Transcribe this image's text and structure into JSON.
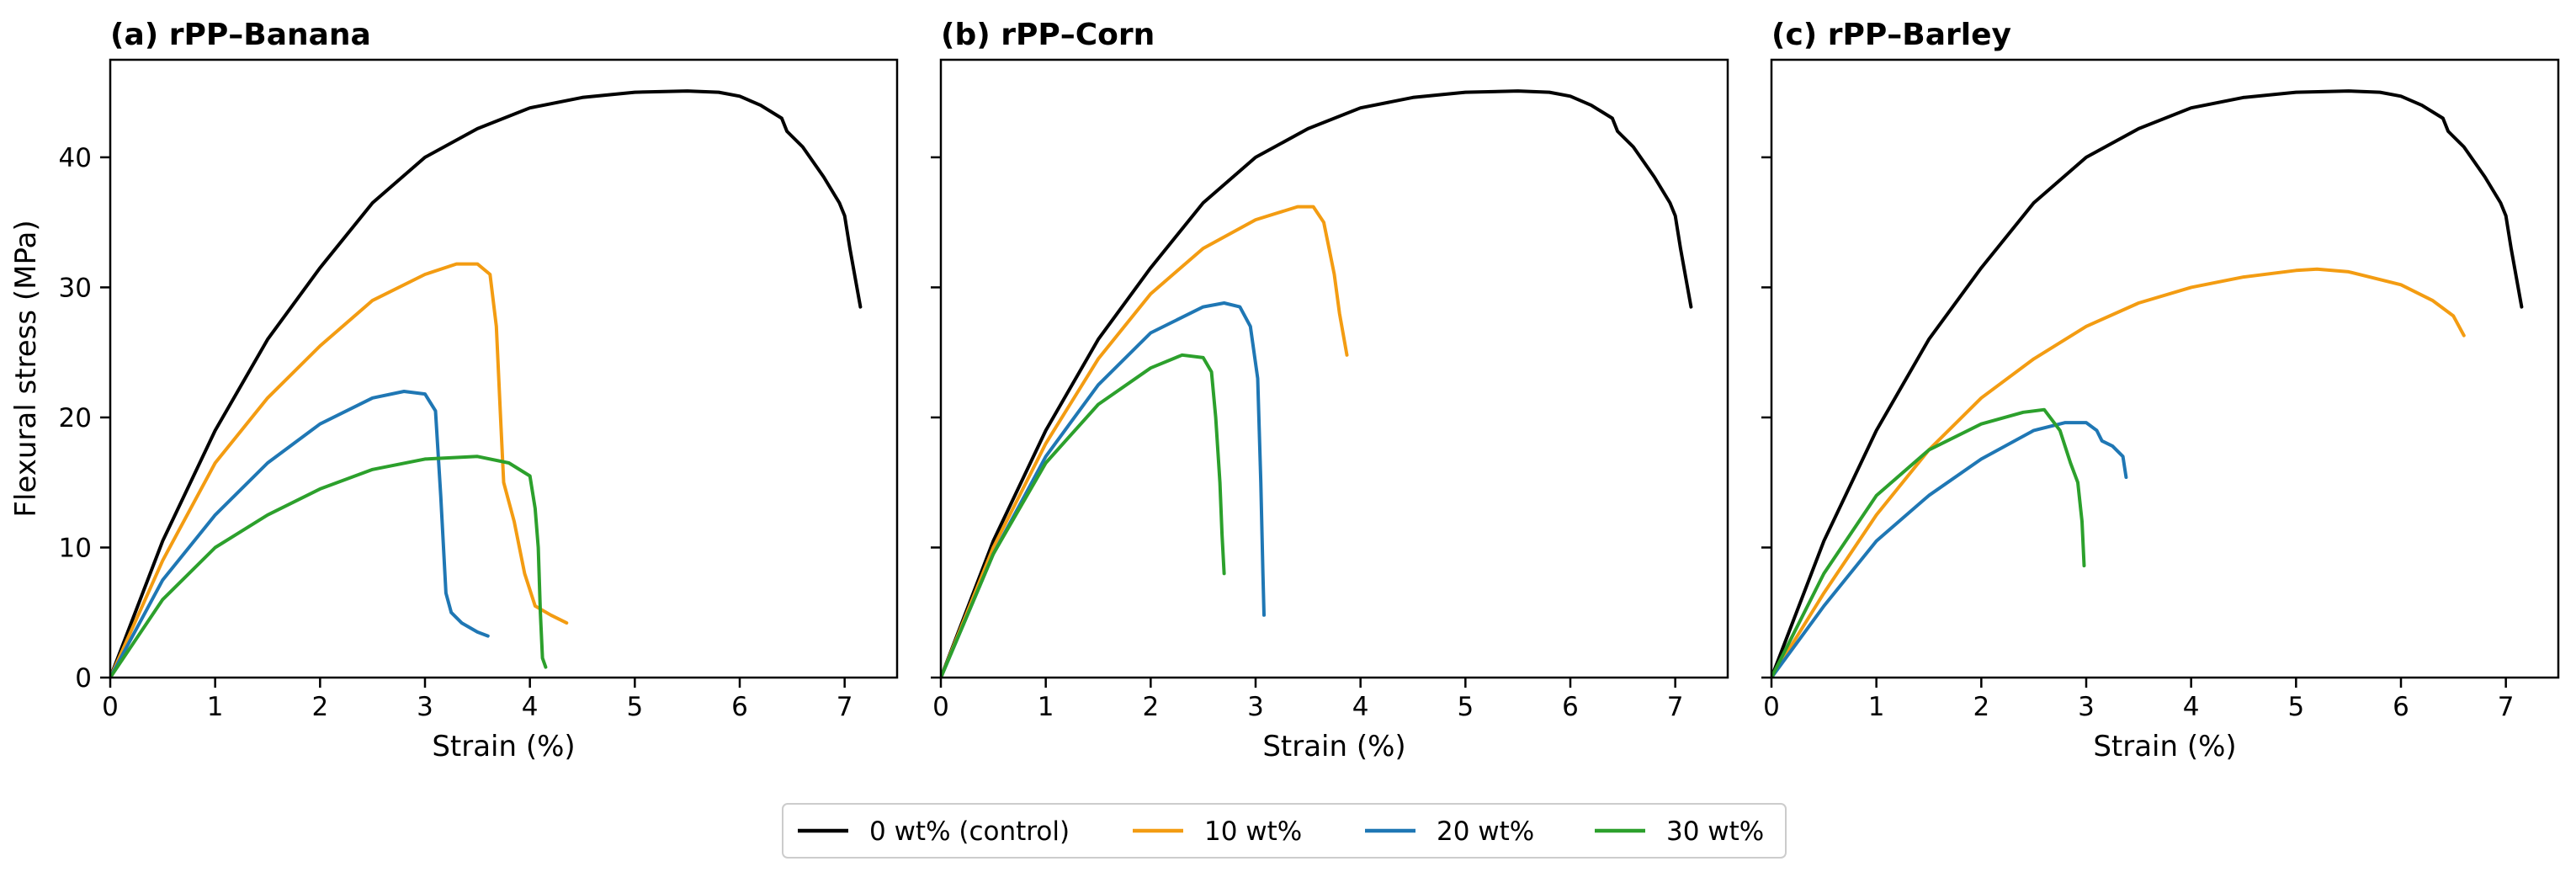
{
  "colors": {
    "control": "#000000",
    "w10": "#f39c12",
    "w20": "#1f77b4",
    "w30": "#2ca02c"
  },
  "legend": {
    "placement": "bottom-center",
    "entries": [
      {
        "label": "0 wt% (control)",
        "color": "#000000"
      },
      {
        "label": "10 wt%",
        "color": "#f39c12"
      },
      {
        "label": "20 wt%",
        "color": "#1f77b4"
      },
      {
        "label": "30 wt%",
        "color": "#2ca02c"
      }
    ]
  },
  "chart_data": [
    {
      "type": "line",
      "title": "(a) rPP–Banana",
      "xlabel": "Strain (%)",
      "ylabel": "Flexural stress (MPa)",
      "xlim": [
        0,
        7.5
      ],
      "ylim": [
        0,
        47.5
      ],
      "xticks": [
        0,
        1,
        2,
        3,
        4,
        5,
        6,
        7
      ],
      "yticks": [
        0,
        10,
        20,
        30,
        40
      ],
      "grid": false,
      "series": [
        {
          "name": "0 wt% (control)",
          "color": "#000000",
          "x": [
            0,
            0.5,
            1.0,
            1.5,
            2.0,
            2.5,
            3.0,
            3.5,
            4.0,
            4.5,
            5.0,
            5.5,
            5.8,
            6.0,
            6.2,
            6.4,
            6.45,
            6.6,
            6.8,
            6.95,
            7.0,
            7.05,
            7.15
          ],
          "y": [
            0,
            10.5,
            19.0,
            26.0,
            31.5,
            36.5,
            40.0,
            42.2,
            43.8,
            44.6,
            45.0,
            45.1,
            45.0,
            44.7,
            44.0,
            43.0,
            42.0,
            40.8,
            38.5,
            36.5,
            35.5,
            33.0,
            28.5
          ]
        },
        {
          "name": "10 wt%",
          "color": "#f39c12",
          "x": [
            0,
            0.5,
            1.0,
            1.5,
            2.0,
            2.5,
            3.0,
            3.3,
            3.5,
            3.62,
            3.68,
            3.72,
            3.75,
            3.85,
            3.95,
            4.05,
            4.2,
            4.35
          ],
          "y": [
            0,
            9.0,
            16.5,
            21.5,
            25.5,
            29.0,
            31.0,
            31.8,
            31.8,
            31.0,
            27.0,
            20.0,
            15.0,
            12.0,
            8.0,
            5.5,
            4.8,
            4.2
          ]
        },
        {
          "name": "20 wt%",
          "color": "#1f77b4",
          "x": [
            0,
            0.5,
            1.0,
            1.5,
            2.0,
            2.5,
            2.8,
            3.0,
            3.1,
            3.15,
            3.2,
            3.25,
            3.35,
            3.5,
            3.6
          ],
          "y": [
            0,
            7.5,
            12.5,
            16.5,
            19.5,
            21.5,
            22.0,
            21.8,
            20.5,
            14.0,
            6.5,
            5.0,
            4.2,
            3.5,
            3.2
          ]
        },
        {
          "name": "30 wt%",
          "color": "#2ca02c",
          "x": [
            0,
            0.5,
            1.0,
            1.5,
            2.0,
            2.5,
            3.0,
            3.5,
            3.8,
            4.0,
            4.05,
            4.08,
            4.1,
            4.12,
            4.15
          ],
          "y": [
            0,
            6.0,
            10.0,
            12.5,
            14.5,
            16.0,
            16.8,
            17.0,
            16.5,
            15.5,
            13.0,
            10.0,
            5.0,
            1.5,
            0.8
          ]
        }
      ]
    },
    {
      "type": "line",
      "title": "(b) rPP–Corn",
      "xlabel": "Strain (%)",
      "ylabel": "",
      "xlim": [
        0,
        7.5
      ],
      "ylim": [
        0,
        47.5
      ],
      "xticks": [
        0,
        1,
        2,
        3,
        4,
        5,
        6,
        7
      ],
      "yticks": [
        0,
        10,
        20,
        30,
        40
      ],
      "grid": false,
      "series": [
        {
          "name": "0 wt% (control)",
          "color": "#000000",
          "x": [
            0,
            0.5,
            1.0,
            1.5,
            2.0,
            2.5,
            3.0,
            3.5,
            4.0,
            4.5,
            5.0,
            5.5,
            5.8,
            6.0,
            6.2,
            6.4,
            6.45,
            6.6,
            6.8,
            6.95,
            7.0,
            7.05,
            7.15
          ],
          "y": [
            0,
            10.5,
            19.0,
            26.0,
            31.5,
            36.5,
            40.0,
            42.2,
            43.8,
            44.6,
            45.0,
            45.1,
            45.0,
            44.7,
            44.0,
            43.0,
            42.0,
            40.8,
            38.5,
            36.5,
            35.5,
            33.0,
            28.5
          ]
        },
        {
          "name": "10 wt%",
          "color": "#f39c12",
          "x": [
            0,
            0.5,
            1.0,
            1.5,
            2.0,
            2.5,
            3.0,
            3.4,
            3.55,
            3.65,
            3.7,
            3.75,
            3.8,
            3.87
          ],
          "y": [
            0,
            10.0,
            18.0,
            24.5,
            29.5,
            33.0,
            35.2,
            36.2,
            36.2,
            35.0,
            33.0,
            31.0,
            28.0,
            24.8
          ]
        },
        {
          "name": "20 wt%",
          "color": "#1f77b4",
          "x": [
            0,
            0.5,
            1.0,
            1.5,
            2.0,
            2.5,
            2.7,
            2.85,
            2.95,
            3.02,
            3.05,
            3.07,
            3.08
          ],
          "y": [
            0,
            9.5,
            17.0,
            22.5,
            26.5,
            28.5,
            28.8,
            28.5,
            27.0,
            23.0,
            15.0,
            8.0,
            4.8
          ]
        },
        {
          "name": "30 wt%",
          "color": "#2ca02c",
          "x": [
            0,
            0.5,
            1.0,
            1.5,
            2.0,
            2.3,
            2.5,
            2.58,
            2.62,
            2.66,
            2.68,
            2.7
          ],
          "y": [
            0,
            9.5,
            16.5,
            21.0,
            23.8,
            24.8,
            24.6,
            23.5,
            20.0,
            15.0,
            11.0,
            8.0
          ]
        }
      ]
    },
    {
      "type": "line",
      "title": "(c) rPP–Barley",
      "xlabel": "Strain (%)",
      "ylabel": "",
      "xlim": [
        0,
        7.5
      ],
      "ylim": [
        0,
        47.5
      ],
      "xticks": [
        0,
        1,
        2,
        3,
        4,
        5,
        6,
        7
      ],
      "yticks": [
        0,
        10,
        20,
        30,
        40
      ],
      "grid": false,
      "series": [
        {
          "name": "0 wt% (control)",
          "color": "#000000",
          "x": [
            0,
            0.5,
            1.0,
            1.5,
            2.0,
            2.5,
            3.0,
            3.5,
            4.0,
            4.5,
            5.0,
            5.5,
            5.8,
            6.0,
            6.2,
            6.4,
            6.45,
            6.6,
            6.8,
            6.95,
            7.0,
            7.05,
            7.15
          ],
          "y": [
            0,
            10.5,
            19.0,
            26.0,
            31.5,
            36.5,
            40.0,
            42.2,
            43.8,
            44.6,
            45.0,
            45.1,
            45.0,
            44.7,
            44.0,
            43.0,
            42.0,
            40.8,
            38.5,
            36.5,
            35.5,
            33.0,
            28.5
          ]
        },
        {
          "name": "10 wt%",
          "color": "#f39c12",
          "x": [
            0,
            0.5,
            1.0,
            1.5,
            2.0,
            2.5,
            3.0,
            3.5,
            4.0,
            4.5,
            5.0,
            5.2,
            5.5,
            6.0,
            6.3,
            6.5,
            6.6
          ],
          "y": [
            0,
            6.5,
            12.5,
            17.5,
            21.5,
            24.5,
            27.0,
            28.8,
            30.0,
            30.8,
            31.3,
            31.4,
            31.2,
            30.2,
            29.0,
            27.8,
            26.3
          ]
        },
        {
          "name": "20 wt%",
          "color": "#1f77b4",
          "x": [
            0,
            0.5,
            1.0,
            1.5,
            2.0,
            2.5,
            2.8,
            3.0,
            3.1,
            3.15,
            3.25,
            3.35,
            3.38
          ],
          "y": [
            0,
            5.5,
            10.5,
            14.0,
            16.8,
            19.0,
            19.6,
            19.6,
            19.0,
            18.2,
            17.8,
            17.0,
            15.4
          ]
        },
        {
          "name": "30 wt%",
          "color": "#2ca02c",
          "x": [
            0,
            0.5,
            1.0,
            1.5,
            2.0,
            2.4,
            2.6,
            2.75,
            2.85,
            2.92,
            2.96,
            2.98
          ],
          "y": [
            0,
            8.0,
            14.0,
            17.5,
            19.5,
            20.4,
            20.6,
            19.0,
            16.5,
            15.0,
            12.0,
            8.6
          ]
        }
      ]
    }
  ]
}
